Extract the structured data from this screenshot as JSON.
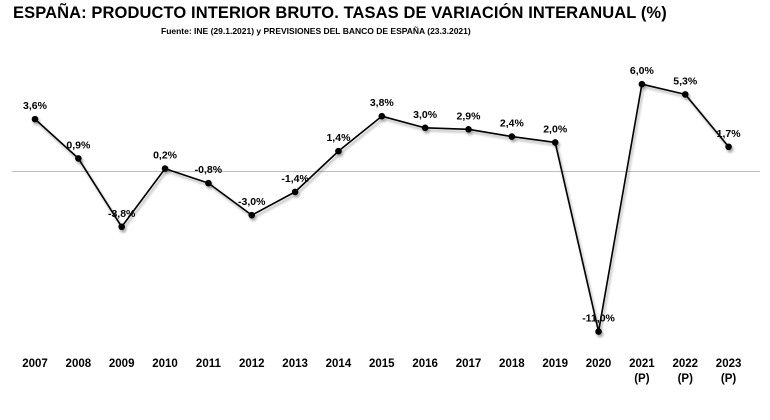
{
  "chart_data": {
    "type": "line",
    "title": "ESPAÑA: PRODUCTO INTERIOR BRUTO. TASAS DE VARIACIÓN INTERANUAL (%)",
    "subtitle": "Fuente: INE (29.1.2021)  y PREVISIONES DEL BANCO DE ESPAÑA (23.3.2021)",
    "xlabel": "",
    "ylabel": "",
    "grid": false,
    "legend": "none",
    "categories": [
      [
        "2007"
      ],
      [
        "2008"
      ],
      [
        "2009"
      ],
      [
        "2010"
      ],
      [
        "2011"
      ],
      [
        "2012"
      ],
      [
        "2013"
      ],
      [
        "2014"
      ],
      [
        "2015"
      ],
      [
        "2016"
      ],
      [
        "2017"
      ],
      [
        "2018"
      ],
      [
        "2019"
      ],
      [
        "2020"
      ],
      [
        "2021",
        "(P)"
      ],
      [
        "2022",
        "(P)"
      ],
      [
        "2023",
        "(P)"
      ]
    ],
    "values": [
      3.6,
      0.9,
      -3.8,
      0.2,
      -0.8,
      -3.0,
      -1.4,
      1.4,
      3.8,
      3.0,
      2.9,
      2.4,
      2.0,
      -11.0,
      6.0,
      5.3,
      1.7
    ],
    "data_labels": [
      "3,6%",
      "0,9%",
      "-3,8%",
      "0,2%",
      "-0,8%",
      "-3,0%",
      "-1,4%",
      "1,4%",
      "3,8%",
      "3,0%",
      "2,9%",
      "2,4%",
      "2,0%",
      "-11,0%",
      "6,0%",
      "5,3%",
      "1,7%"
    ],
    "label_position": [
      "above",
      "above",
      "below",
      "above",
      "above",
      "above",
      "above",
      "above",
      "above",
      "above",
      "above",
      "above",
      "above",
      "below",
      "above",
      "above",
      "above"
    ],
    "ylim": [
      -12.5,
      7.5
    ],
    "colors": {
      "line": "#000000",
      "marker": "#000000",
      "axis": "#bfbfbf",
      "shadow": "#b3b3b3"
    }
  }
}
